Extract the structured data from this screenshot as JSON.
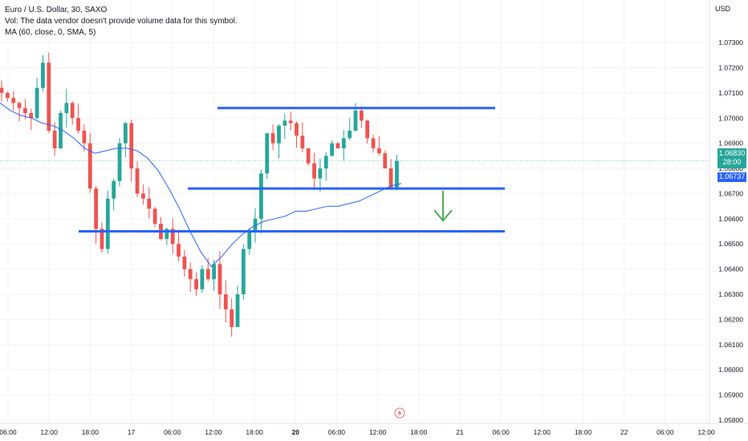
{
  "header": {
    "symbol_line": "Euro / U.S. Dollar, 30, SAXO",
    "volume_line": "Vol: The data vendor doesn't provide volume data for this symbol.",
    "ma_line": "MA (60, close, 0, SMA, 5)"
  },
  "price_axis": {
    "currency": "USD",
    "last_price": "1.06830",
    "countdown": "28:00",
    "ma_value": "1.06737"
  },
  "colors": {
    "up": "#26a69a",
    "down": "#ef5350",
    "ma_line": "#2962ff",
    "drawn_lines": "#2962ff",
    "arrow": "#4caf50"
  },
  "icons": {
    "event_marker": "lightning-icon",
    "target_arrow": "arrow-down-icon"
  },
  "chart_data": {
    "type": "candlestick",
    "title": "Euro / U.S. Dollar, 30, SAXO",
    "ylim": [
      1.058,
      1.0745
    ],
    "y_ticks": [
      "1.05800",
      "1.05900",
      "1.06000",
      "1.06100",
      "1.06200",
      "1.06300",
      "1.06400",
      "1.06500",
      "1.06600",
      "1.06700",
      "1.06800",
      "1.06900",
      "1.07000",
      "1.07100",
      "1.07200",
      "1.07300"
    ],
    "x_ticks": [
      {
        "label": "06:00",
        "bold": false
      },
      {
        "label": "12:00",
        "bold": false
      },
      {
        "label": "18:00",
        "bold": false
      },
      {
        "label": "17",
        "bold": false
      },
      {
        "label": "06:00",
        "bold": false
      },
      {
        "label": "12:00",
        "bold": false
      },
      {
        "label": "18:00",
        "bold": false
      },
      {
        "label": "20",
        "bold": true
      },
      {
        "label": "06:00",
        "bold": false
      },
      {
        "label": "12:00",
        "bold": false
      },
      {
        "label": "18:00",
        "bold": false
      },
      {
        "label": "21",
        "bold": false
      },
      {
        "label": "06:00",
        "bold": false
      },
      {
        "label": "12:00",
        "bold": false
      },
      {
        "label": "18:00",
        "bold": false
      },
      {
        "label": "22",
        "bold": false
      },
      {
        "label": "06:00",
        "bold": false
      },
      {
        "label": "12:00",
        "bold": false
      }
    ],
    "close_path": [
      1.071,
      1.0708,
      1.0706,
      1.0704,
      1.0702,
      1.07,
      1.0712,
      1.0722,
      1.0695,
      1.0688,
      1.0702,
      1.0706,
      1.07,
      1.0695,
      1.069,
      1.0672,
      1.0656,
      1.0648,
      1.0668,
      1.0675,
      1.069,
      1.0698,
      1.068,
      1.067,
      1.0668,
      1.0664,
      1.0658,
      1.0652,
      1.0656,
      1.065,
      1.0645,
      1.064,
      1.0636,
      1.0632,
      1.064,
      1.0636,
      1.0642,
      1.063,
      1.0624,
      1.0617,
      1.063,
      1.0648,
      1.0655,
      1.066,
      1.0678,
      1.0694,
      1.069,
      1.0697,
      1.0699,
      1.0698,
      1.0693,
      1.0688,
      1.0682,
      1.0676,
      1.068,
      1.0685,
      1.069,
      1.0688,
      1.0692,
      1.0695,
      1.0703,
      1.0699,
      1.0692,
      1.0688,
      1.0686,
      1.068,
      1.0672,
      1.0683
    ],
    "ma_path": [
      1.0706,
      1.0703,
      1.0701,
      1.07,
      1.0698,
      1.0697,
      1.0695,
      1.0692,
      1.0688,
      1.0686,
      1.0687,
      1.0688,
      1.0688,
      1.0687,
      1.0684,
      1.0679,
      1.0672,
      1.0664,
      1.0655,
      1.0647,
      1.0641,
      1.0645,
      1.065,
      1.0654,
      1.0657,
      1.0659,
      1.066,
      1.0661,
      1.0663,
      1.0663,
      1.0664,
      1.0665,
      1.0665,
      1.0666,
      1.0667,
      1.0669,
      1.0671,
      1.0673,
      1.0674
    ],
    "horizontal_levels": [
      1.0704,
      1.0672,
      1.0655
    ],
    "last_price": 1.0683,
    "ma_value": 1.06737,
    "arrow_target": 1.0658
  }
}
